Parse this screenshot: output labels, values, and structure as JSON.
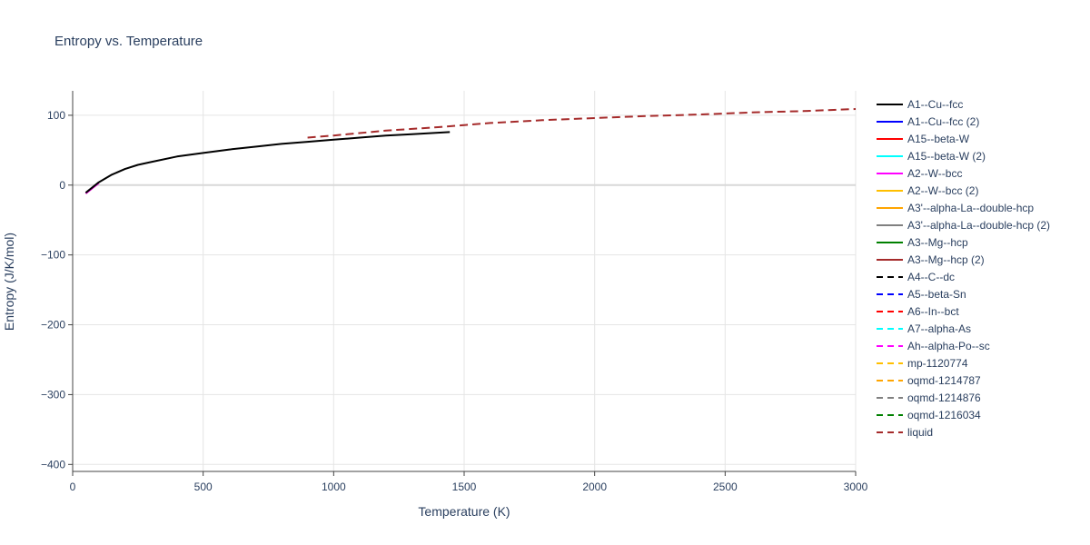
{
  "chart_data": {
    "type": "line",
    "title": "Entropy vs. Temperature",
    "xlabel": "Temperature (K)",
    "ylabel": "Entropy (J/K/mol)",
    "xlim": [
      0,
      3000
    ],
    "ylim": [
      -410,
      135
    ],
    "x_ticks": [
      0,
      500,
      1000,
      1500,
      2000,
      2500,
      3000
    ],
    "x_tick_labels": [
      "0",
      "500",
      "1000",
      "1500",
      "2000",
      "2500",
      "3000"
    ],
    "y_ticks": [
      100,
      0,
      -100,
      -200,
      -300,
      -400
    ],
    "y_tick_labels": [
      "100",
      "0",
      "−100",
      "−200",
      "−300",
      "−400"
    ],
    "grid": true,
    "legend_position": "right",
    "series": [
      {
        "name": "A1--Cu--fcc",
        "color": "#000000",
        "dash": "solid",
        "x": [
          50,
          100,
          150,
          200,
          250,
          300,
          400,
          500,
          600,
          700,
          800,
          900,
          1000,
          1100,
          1200,
          1300,
          1445
        ],
        "y": [
          -11,
          4,
          15,
          23,
          29,
          33,
          41,
          46,
          51,
          55,
          59,
          62,
          65,
          68,
          71,
          73,
          76
        ]
      },
      {
        "name": "A1--Cu--fcc (2)",
        "color": "#0000ff",
        "dash": "solid",
        "x": [],
        "y": []
      },
      {
        "name": "A15--beta-W",
        "color": "#ff0000",
        "dash": "solid",
        "x": [],
        "y": []
      },
      {
        "name": "A15--beta-W (2)",
        "color": "#00ffff",
        "dash": "solid",
        "x": [],
        "y": []
      },
      {
        "name": "A2--W--bcc",
        "color": "#ff00ff",
        "dash": "solid",
        "x": [
          50,
          100
        ],
        "y": [
          -12,
          3
        ]
      },
      {
        "name": "A2--W--bcc (2)",
        "color": "#ffbf00",
        "dash": "solid",
        "x": [],
        "y": []
      },
      {
        "name": "A3'--alpha-La--double-hcp",
        "color": "#ffa500",
        "dash": "solid",
        "x": [],
        "y": []
      },
      {
        "name": "A3'--alpha-La--double-hcp (2)",
        "color": "#808080",
        "dash": "solid",
        "x": [],
        "y": []
      },
      {
        "name": "A3--Mg--hcp",
        "color": "#008000",
        "dash": "solid",
        "x": [],
        "y": []
      },
      {
        "name": "A3--Mg--hcp (2)",
        "color": "#a52a2a",
        "dash": "solid",
        "x": [
          50,
          100
        ],
        "y": [
          -12,
          3
        ]
      },
      {
        "name": "A4--C--dc",
        "color": "#000000",
        "dash": "dash",
        "x": [],
        "y": []
      },
      {
        "name": "A5--beta-Sn",
        "color": "#0000ff",
        "dash": "dash",
        "x": [],
        "y": []
      },
      {
        "name": "A6--In--bct",
        "color": "#ff0000",
        "dash": "dash",
        "x": [],
        "y": []
      },
      {
        "name": "A7--alpha-As",
        "color": "#00ffff",
        "dash": "dash",
        "x": [],
        "y": []
      },
      {
        "name": "Ah--alpha-Po--sc",
        "color": "#ff00ff",
        "dash": "dash",
        "x": [],
        "y": []
      },
      {
        "name": "mp-1120774",
        "color": "#ffbf00",
        "dash": "dash",
        "x": [],
        "y": []
      },
      {
        "name": "oqmd-1214787",
        "color": "#ffa500",
        "dash": "dash",
        "x": [],
        "y": []
      },
      {
        "name": "oqmd-1214876",
        "color": "#808080",
        "dash": "dash",
        "x": [],
        "y": []
      },
      {
        "name": "oqmd-1216034",
        "color": "#008000",
        "dash": "dash",
        "x": [],
        "y": []
      },
      {
        "name": "liquid",
        "color": "#a52a2a",
        "dash": "dash",
        "x": [
          900,
          1000,
          1200,
          1400,
          1500,
          1600,
          1800,
          2000,
          2200,
          2400,
          2600,
          2800,
          3000
        ],
        "y": [
          68,
          71,
          78,
          83,
          86,
          89,
          93,
          96,
          99,
          101,
          104,
          106,
          109
        ]
      }
    ]
  }
}
